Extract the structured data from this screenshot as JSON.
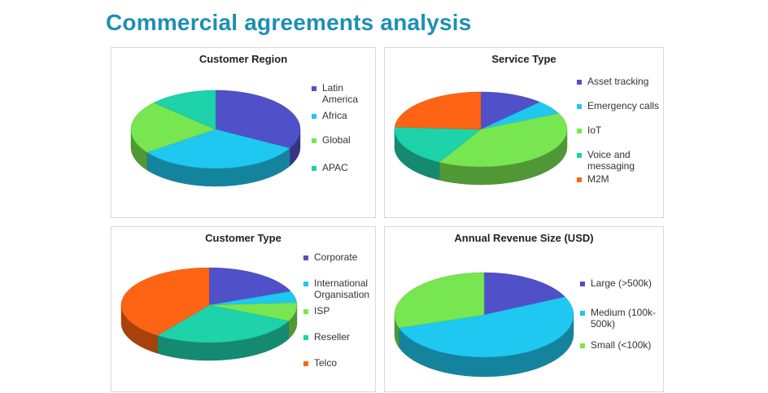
{
  "page": {
    "title": "Commercial agreements analysis"
  },
  "colors": {
    "title": "#1d8fb3",
    "dark_blue": "#5050c8",
    "light_blue": "#1ec8f0",
    "green": "#78e650",
    "teal": "#1ed2aa",
    "orange": "#ff6414"
  },
  "chart_data": [
    {
      "type": "pie",
      "title": "Customer Region",
      "categories": [
        "Latin America",
        "Africa",
        "Global",
        "APAC"
      ],
      "values": [
        33,
        32,
        22,
        13
      ],
      "colors": [
        "#5050c8",
        "#1ec8f0",
        "#78e650",
        "#1ed2aa"
      ],
      "legend_labels": [
        [
          "Latin",
          "America"
        ],
        [
          "Africa"
        ],
        [
          "Global"
        ],
        [
          "APAC"
        ]
      ]
    },
    {
      "type": "pie",
      "title": "Service Type",
      "categories": [
        "Asset tracking",
        "Emergency calls",
        "IoT",
        "Voice and messaging",
        "M2M"
      ],
      "values": [
        12,
        6,
        40,
        18,
        24
      ],
      "colors": [
        "#5050c8",
        "#1ec8f0",
        "#78e650",
        "#1ed2aa",
        "#ff6414"
      ],
      "legend_labels": [
        [
          "Asset tracking"
        ],
        [
          "Emergency calls"
        ],
        [
          "IoT"
        ],
        [
          "Voice and",
          "messaging"
        ],
        [
          "M2M"
        ]
      ]
    },
    {
      "type": "pie",
      "title": "Customer Type",
      "categories": [
        "Corporate",
        "International Organisation",
        "ISP",
        "Reseller",
        "Telco"
      ],
      "values": [
        19,
        5,
        8,
        28,
        40
      ],
      "colors": [
        "#5050c8",
        "#1ec8f0",
        "#78e650",
        "#1ed2aa",
        "#ff6414"
      ],
      "legend_labels": [
        [
          "Corporate"
        ],
        [
          "International",
          "Organisation"
        ],
        [
          "ISP"
        ],
        [
          "Reseller"
        ],
        [
          "Telco"
        ]
      ]
    },
    {
      "type": "pie",
      "title": "Annual Revenue Size (USD)",
      "categories": [
        "Large (>500k)",
        "Medium (100k-500k)",
        "Small (<100k)"
      ],
      "values": [
        18,
        52,
        30
      ],
      "colors": [
        "#5050c8",
        "#1ec8f0",
        "#78e650"
      ],
      "legend_labels": [
        [
          "Large (>500k)"
        ],
        [
          "Medium (100k-",
          "500k)"
        ],
        [
          "Small (<100k)"
        ]
      ]
    }
  ]
}
